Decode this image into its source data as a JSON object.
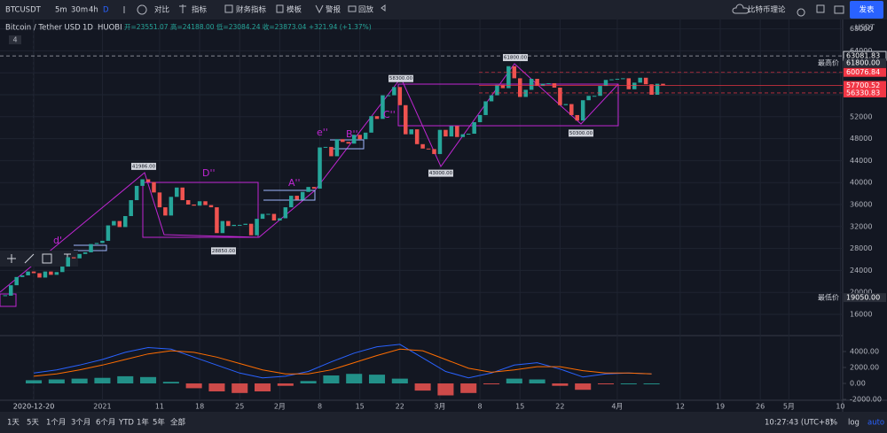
{
  "toolbar": {
    "symbol": "BTCUSDT",
    "intervals": [
      "5m",
      "30m",
      "4h",
      "D"
    ],
    "compare": "对比",
    "indicators": "指标",
    "financials": "财务指标",
    "templates": "模板",
    "alert": "警报",
    "replay": "回放",
    "layout_name": "比特币理论",
    "publish": "发表"
  },
  "legend": {
    "title": "Bitcoin / Tether USD",
    "interval": "1D",
    "exchange": "HUOBI",
    "ohlc": "开=23551.07 高=24188.00 低=23084.24 收=23873.04 +321.94 (+1.37%)",
    "badge": "4"
  },
  "chart_data": {
    "type": "candlestick",
    "x": [
      -5,
      -4,
      -3,
      -2,
      -1,
      0,
      1,
      2,
      3,
      4,
      5,
      6,
      7,
      8,
      9,
      10,
      11,
      12,
      13,
      14,
      15,
      16,
      17,
      18,
      19,
      20,
      21,
      22,
      23,
      24,
      25,
      26,
      27,
      28,
      29,
      30,
      31,
      32,
      33,
      34,
      35,
      36,
      37,
      38,
      39,
      40,
      41,
      42,
      43,
      44,
      45,
      46,
      47,
      48,
      49,
      50,
      51,
      52,
      53,
      54,
      55,
      56,
      57,
      58,
      59,
      60,
      61,
      62,
      63,
      64,
      65,
      66,
      67,
      68,
      69,
      70,
      71,
      72,
      73,
      74,
      75,
      76,
      77,
      78,
      79,
      80,
      81,
      82,
      83,
      84,
      85,
      86,
      87,
      88,
      89,
      90,
      91,
      92,
      93,
      94,
      95,
      96,
      97,
      98,
      99,
      100,
      101,
      102,
      103,
      104,
      105,
      106,
      107,
      108,
      109,
      110
    ],
    "values": [
      19400,
      21300,
      22800,
      23100,
      23800,
      23500,
      22700,
      23800,
      23200,
      23700,
      24700,
      26400,
      26200,
      27000,
      27300,
      28800,
      29000,
      29400,
      32200,
      33000,
      31900,
      33900,
      36800,
      39400,
      40600,
      40100,
      38200,
      35500,
      34000,
      37400,
      39100,
      36800,
      36000,
      35800,
      36600,
      35900,
      35500,
      30800,
      33000,
      32100,
      32300,
      32300,
      32500,
      30400,
      33400,
      34300,
      34300,
      33100,
      33500,
      35500,
      37600,
      36900,
      38300,
      39200,
      38900,
      46400,
      46500,
      44800,
      47900,
      47400,
      47100,
      48700,
      47900,
      49100,
      52100,
      51600,
      55900,
      55900,
      57400,
      54100,
      48800,
      49700,
      47000,
      46200,
      46100,
      45200,
      49600,
      48400,
      50300,
      48300,
      48800,
      48900,
      51000,
      52300,
      54800,
      55900,
      57800,
      57200,
      61200,
      59000,
      55600,
      56900,
      58900,
      57600,
      58000,
      58100,
      57300,
      54100,
      54300,
      52300,
      51300,
      55000,
      55800,
      55800,
      57600,
      58700,
      58800,
      58900,
      59000,
      57000,
      58200,
      59100,
      57900,
      56000,
      58000,
      57700
    ],
    "color_up": "#26a69a",
    "color_down": "#ef5350",
    "xlim": [
      -5.9,
      141.4
    ],
    "xticks": [
      {
        "value": 0,
        "label": "2020-12-20"
      },
      {
        "value": 12,
        "label": "2021"
      },
      {
        "value": 22,
        "label": "11"
      },
      {
        "value": 29,
        "label": "18"
      },
      {
        "value": 36,
        "label": "25"
      },
      {
        "value": 43,
        "label": "2月"
      },
      {
        "value": 50,
        "label": "8"
      },
      {
        "value": 57,
        "label": "15"
      },
      {
        "value": 64,
        "label": "22"
      },
      {
        "value": 71,
        "label": "3月"
      },
      {
        "value": 78,
        "label": "8"
      },
      {
        "value": 85,
        "label": "15"
      },
      {
        "value": 92,
        "label": "22"
      },
      {
        "value": 102,
        "label": "4月"
      },
      {
        "value": 113,
        "label": "12"
      },
      {
        "value": 120,
        "label": "19"
      },
      {
        "value": 127,
        "label": "26"
      },
      {
        "value": 132,
        "label": "5月"
      },
      {
        "value": 141,
        "label": "10"
      }
    ],
    "ylim": [
      12290,
      69710
    ],
    "yticks": [
      16000,
      20000,
      24000,
      28000,
      32000,
      36000,
      40000,
      44000,
      48000,
      52000,
      56000,
      60000,
      64000,
      68000
    ],
    "y_unit": "USDT",
    "grid": true,
    "price_lines": [
      {
        "value": 63081.83,
        "label": "63081.83",
        "color": "#d1d4dc"
      },
      {
        "value": 61800,
        "label": "61800.00",
        "name": "最高价",
        "color": "#2a2e39"
      },
      {
        "value": 60076.84,
        "label": "60076.84",
        "color": "#f23645"
      },
      {
        "value": 57700.52,
        "label": "57700.52",
        "note": "13:32:17",
        "color": "#f23645"
      },
      {
        "value": 56330.83,
        "label": "56330.83",
        "color": "#f23645"
      },
      {
        "value": 19050,
        "label": "19050.00",
        "name": "最低价",
        "color": "#2a2e39"
      }
    ],
    "wave_labels": [
      "d'",
      "D''",
      "A''",
      "e''",
      "B''",
      "C''"
    ],
    "point_labels": [
      {
        "value": 41986,
        "label": "41986.00"
      },
      {
        "value": 28850,
        "label": "28850.00"
      },
      {
        "value": 58300,
        "label": "58300.00"
      },
      {
        "value": 43000,
        "label": "43000.00"
      },
      {
        "value": 61800,
        "label": "61800.00"
      },
      {
        "value": 50300,
        "label": "50300.00"
      }
    ],
    "y2lim": [
      -2110,
      5890
    ],
    "y2ticks": [
      {
        "value": -2000,
        "label": "-2000.00"
      },
      {
        "value": 0,
        "label": "0.00"
      },
      {
        "value": 2000,
        "label": "2000.00"
      },
      {
        "value": 4000,
        "label": "4000.00"
      }
    ],
    "indicator": {
      "x": [
        0,
        4,
        8,
        12,
        16,
        20,
        24,
        28,
        32,
        36,
        40,
        44,
        48,
        52,
        56,
        60,
        64,
        68,
        72,
        76,
        80,
        84,
        88,
        92,
        96,
        100,
        104,
        108
      ],
      "series": [
        {
          "color": "#2962ff",
          "axis": "y2",
          "values": [
            1300,
            1700,
            2300,
            3000,
            3900,
            4500,
            4300,
            3300,
            2300,
            1300,
            700,
            900,
            1500,
            2700,
            3800,
            4600,
            4900,
            3200,
            1500,
            700,
            1300,
            2300,
            2600,
            1800,
            800,
            1200,
            1300,
            1200
          ]
        },
        {
          "color": "#ff6d00",
          "axis": "y2",
          "values": [
            900,
            1200,
            1700,
            2300,
            3000,
            3700,
            4100,
            3900,
            3300,
            2500,
            1700,
            1200,
            1200,
            1700,
            2600,
            3500,
            4300,
            4100,
            3000,
            1900,
            1400,
            1700,
            2100,
            2100,
            1600,
            1300,
            1300,
            1200
          ]
        }
      ],
      "histogram": [
        400,
        500,
        600,
        700,
        900,
        800,
        200,
        -600,
        -1000,
        -1200,
        -1000,
        -300,
        300,
        1000,
        1200,
        1100,
        600,
        -900,
        -1500,
        -1200,
        -100,
        600,
        500,
        -300,
        -800,
        -100,
        0,
        0
      ]
    }
  },
  "bottom_bar": {
    "ranges": [
      "1天",
      "5天",
      "1个月",
      "3个月",
      "6个月",
      "YTD",
      "1年",
      "5年",
      "全部"
    ],
    "clock": "10:27:43 (UTC+8)",
    "modes": [
      "%",
      "log",
      "auto"
    ]
  }
}
